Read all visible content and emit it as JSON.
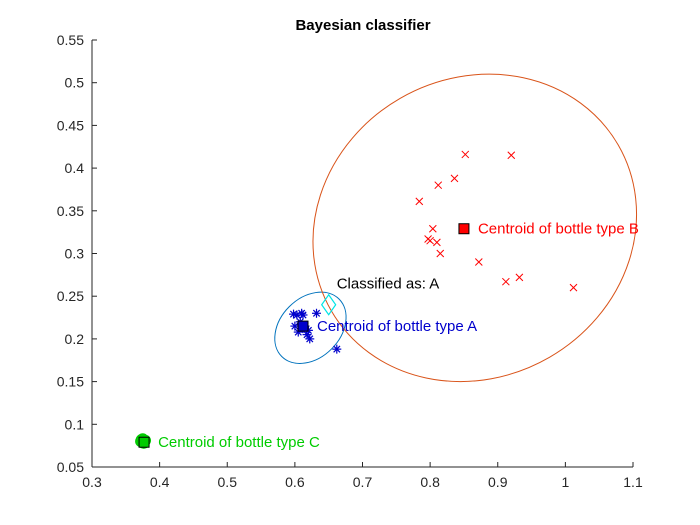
{
  "chart_data": {
    "type": "scatter",
    "title": "Bayesian classifier",
    "xlabel": "",
    "ylabel": "",
    "xlim": [
      0.3,
      1.1
    ],
    "ylim": [
      0.05,
      0.55
    ],
    "xticks": [
      "0.3",
      "0.4",
      "0.5",
      "0.6",
      "0.7",
      "0.8",
      "0.9",
      "1",
      "1.1"
    ],
    "yticks": [
      "0.05",
      "0.1",
      "0.15",
      "0.2",
      "0.25",
      "0.3",
      "0.35",
      "0.4",
      "0.45",
      "0.5",
      "0.55"
    ],
    "grid": false,
    "series": [
      {
        "marker": "asterisk",
        "color": "#0000CC",
        "points": [
          [
            0.598,
            0.229
          ],
          [
            0.603,
            0.228
          ],
          [
            0.61,
            0.23
          ],
          [
            0.632,
            0.23
          ],
          [
            0.6,
            0.215
          ],
          [
            0.608,
            0.22
          ],
          [
            0.612,
            0.212
          ],
          [
            0.605,
            0.208
          ],
          [
            0.615,
            0.215
          ],
          [
            0.618,
            0.205
          ],
          [
            0.622,
            0.2
          ],
          [
            0.62,
            0.21
          ],
          [
            0.662,
            0.188
          ],
          [
            0.612,
            0.228
          ]
        ]
      },
      {
        "marker": "x",
        "color": "#FF0000",
        "points": [
          [
            0.852,
            0.416
          ],
          [
            0.92,
            0.415
          ],
          [
            0.836,
            0.388
          ],
          [
            0.812,
            0.38
          ],
          [
            0.784,
            0.361
          ],
          [
            0.804,
            0.329
          ],
          [
            0.797,
            0.317
          ],
          [
            0.8,
            0.315
          ],
          [
            0.81,
            0.313
          ],
          [
            0.815,
            0.3
          ],
          [
            0.872,
            0.29
          ],
          [
            0.912,
            0.267
          ],
          [
            0.932,
            0.272
          ],
          [
            1.012,
            0.26
          ]
        ]
      },
      {
        "marker": "circle",
        "color": "#00CC00",
        "points": [
          [
            0.373,
            0.082
          ],
          [
            0.376,
            0.081
          ],
          [
            0.378,
            0.08
          ],
          [
            0.374,
            0.079
          ],
          [
            0.377,
            0.078
          ],
          [
            0.379,
            0.081
          ],
          [
            0.375,
            0.083
          ],
          [
            0.372,
            0.08
          ]
        ]
      }
    ],
    "ellipses": [
      {
        "color": "#0072BD",
        "cx": 0.623,
        "cy": 0.213,
        "rx": 0.06,
        "ry": 0.035,
        "angle_deg": -45
      },
      {
        "color": "#D95319",
        "cx": 0.866,
        "cy": 0.33,
        "rx": 0.245,
        "ry": 0.175,
        "angle_deg": -30
      },
      {
        "color": "#00CC00",
        "cx": 0.376,
        "cy": 0.08,
        "rx": 0.008,
        "ry": 0.008,
        "angle_deg": 0
      }
    ],
    "centroids": [
      {
        "x": 0.612,
        "y": 0.215,
        "color": "#0000CC",
        "label": "Centroid of bottle type A"
      },
      {
        "x": 0.85,
        "y": 0.329,
        "color": "#FF0000",
        "label": "Centroid of bottle type B"
      },
      {
        "x": 0.377,
        "y": 0.079,
        "color": "#00CC00",
        "label": "Centroid of bottle type C"
      }
    ],
    "query": {
      "x": 0.65,
      "y": 0.24,
      "marker": "diamond",
      "color": "#00E5E5",
      "label": "Classified as: A"
    }
  }
}
